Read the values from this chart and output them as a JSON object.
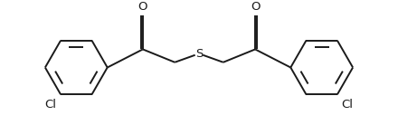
{
  "background_color": "#ffffff",
  "line_color": "#1a1a1a",
  "line_width": 1.4,
  "labels": {
    "O_left": "O",
    "O_right": "O",
    "S": "S",
    "Cl_left": "Cl",
    "Cl_right": "Cl"
  },
  "label_fontsize": 9.5,
  "figsize": [
    4.4,
    1.38
  ],
  "dpi": 100,
  "xlim": [
    -2.5,
    2.5
  ],
  "ylim": [
    -0.85,
    0.72
  ]
}
